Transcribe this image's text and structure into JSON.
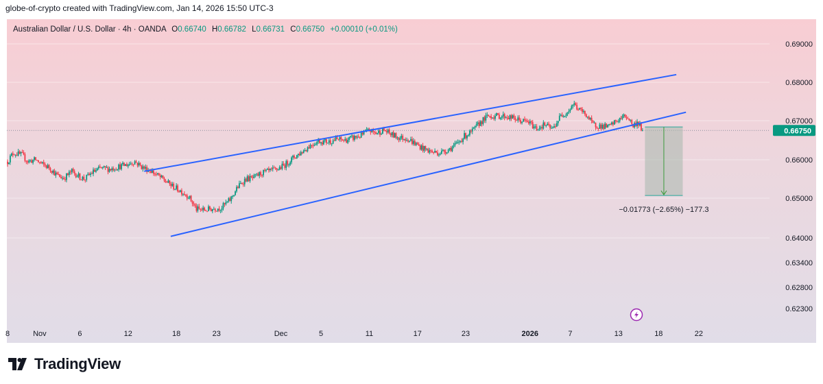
{
  "header": {
    "attribution": "globe-of-crypto created with TradingView.com, Jan 14, 2026 15:50 UTC-3"
  },
  "legend": {
    "symbol": "Australian Dollar / U.S. Dollar · 4h · OANDA",
    "o_label": "O",
    "o_value": "0.66740",
    "h_label": "H",
    "h_value": "0.66782",
    "l_label": "L",
    "l_value": "0.66731",
    "c_label": "C",
    "c_value": "0.66750",
    "change": "+0.00010 (+0.01%)"
  },
  "brand": {
    "name": "TradingView"
  },
  "colors": {
    "up": "#089981",
    "down": "#f23645",
    "channel": "#2962ff",
    "price_tag": "#089981",
    "projection_fill": "#a8b8ad",
    "projection_line": "#26a69a"
  },
  "chart_data": {
    "type": "candlestick",
    "symbol": "AUDUSD",
    "timeframe": "4h",
    "x_ticks": [
      {
        "label": "8",
        "day": 8
      },
      {
        "label": "Nov",
        "day": 12
      },
      {
        "label": "6",
        "day": 17
      },
      {
        "label": "12",
        "day": 23
      },
      {
        "label": "18",
        "day": 29
      },
      {
        "label": "23",
        "day": 34
      },
      {
        "label": "Dec",
        "day": 42
      },
      {
        "label": "5",
        "day": 47
      },
      {
        "label": "11",
        "day": 53
      },
      {
        "label": "17",
        "day": 59
      },
      {
        "label": "23",
        "day": 65
      },
      {
        "label": "2026",
        "day": 73
      },
      {
        "label": "7",
        "day": 78
      },
      {
        "label": "13",
        "day": 84
      },
      {
        "label": "18",
        "day": 89
      },
      {
        "label": "22",
        "day": 94
      }
    ],
    "y_ticks": [
      {
        "label": "0.69000",
        "value": 0.69
      },
      {
        "label": "0.68000",
        "value": 0.68
      },
      {
        "label": "0.67000",
        "value": 0.67
      },
      {
        "label": "0.66000",
        "value": 0.66
      },
      {
        "label": "0.65000",
        "value": 0.65
      },
      {
        "label": "0.64000",
        "value": 0.64
      },
      {
        "label": "0.63400",
        "value": 0.634
      },
      {
        "label": "0.62800",
        "value": 0.628
      },
      {
        "label": "0.62300",
        "value": 0.623
      }
    ],
    "last_price": 0.6675,
    "last_price_label": "0.66750",
    "path_points": [
      [
        8.0,
        0.6595
      ],
      [
        8.7,
        0.6618
      ],
      [
        9.8,
        0.6612
      ],
      [
        10.5,
        0.6596
      ],
      [
        11.5,
        0.66
      ],
      [
        12.3,
        0.6588
      ],
      [
        13.2,
        0.658
      ],
      [
        14.1,
        0.656
      ],
      [
        15.0,
        0.6552
      ],
      [
        16.0,
        0.657
      ],
      [
        17.0,
        0.6555
      ],
      [
        17.6,
        0.655
      ],
      [
        18.6,
        0.6568
      ],
      [
        19.6,
        0.6578
      ],
      [
        20.8,
        0.6576
      ],
      [
        21.8,
        0.6582
      ],
      [
        23.0,
        0.6588
      ],
      [
        23.8,
        0.6596
      ],
      [
        24.8,
        0.658
      ],
      [
        25.8,
        0.6572
      ],
      [
        26.6,
        0.656
      ],
      [
        27.4,
        0.6548
      ],
      [
        28.6,
        0.653
      ],
      [
        29.6,
        0.6518
      ],
      [
        30.5,
        0.6505
      ],
      [
        31.5,
        0.6472
      ],
      [
        32.5,
        0.647
      ],
      [
        33.6,
        0.6474
      ],
      [
        34.6,
        0.6476
      ],
      [
        35.7,
        0.6496
      ],
      [
        36.6,
        0.6528
      ],
      [
        37.6,
        0.655
      ],
      [
        38.6,
        0.6552
      ],
      [
        39.6,
        0.6566
      ],
      [
        40.6,
        0.657
      ],
      [
        41.6,
        0.6576
      ],
      [
        42.6,
        0.6588
      ],
      [
        43.6,
        0.6606
      ],
      [
        44.6,
        0.662
      ],
      [
        45.6,
        0.6636
      ],
      [
        46.6,
        0.6648
      ],
      [
        47.8,
        0.6646
      ],
      [
        49.0,
        0.6652
      ],
      [
        50.0,
        0.665
      ],
      [
        51.0,
        0.6656
      ],
      [
        52.0,
        0.6662
      ],
      [
        53.0,
        0.6676
      ],
      [
        53.8,
        0.6668
      ],
      [
        54.8,
        0.6676
      ],
      [
        55.8,
        0.6664
      ],
      [
        56.8,
        0.6656
      ],
      [
        57.7,
        0.6655
      ],
      [
        58.8,
        0.664
      ],
      [
        59.8,
        0.6628
      ],
      [
        60.8,
        0.662
      ],
      [
        61.8,
        0.6618
      ],
      [
        62.8,
        0.6626
      ],
      [
        63.8,
        0.6638
      ],
      [
        64.8,
        0.666
      ],
      [
        65.8,
        0.6672
      ],
      [
        66.8,
        0.6696
      ],
      [
        67.8,
        0.6712
      ],
      [
        68.8,
        0.6712
      ],
      [
        69.8,
        0.6712
      ],
      [
        70.8,
        0.6707
      ],
      [
        71.8,
        0.67
      ],
      [
        72.8,
        0.6696
      ],
      [
        73.8,
        0.668
      ],
      [
        74.8,
        0.669
      ],
      [
        75.8,
        0.6678
      ],
      [
        76.8,
        0.6712
      ],
      [
        77.8,
        0.6726
      ],
      [
        78.4,
        0.6745
      ],
      [
        79.0,
        0.673
      ],
      [
        80.0,
        0.6716
      ],
      [
        80.8,
        0.669
      ],
      [
        81.8,
        0.6686
      ],
      [
        82.8,
        0.6684
      ],
      [
        83.8,
        0.67
      ],
      [
        84.8,
        0.6712
      ],
      [
        85.3,
        0.6706
      ],
      [
        85.8,
        0.6686
      ],
      [
        86.4,
        0.6697
      ],
      [
        87.0,
        0.6675
      ]
    ],
    "channel": {
      "upper": [
        [
          25.0,
          0.657
        ],
        [
          91.2,
          0.682
        ]
      ],
      "lower": [
        [
          28.3,
          0.6404
        ],
        [
          92.4,
          0.6722
        ]
      ]
    },
    "projection": {
      "from_price": 0.6684,
      "to_price": 0.6507,
      "from_day": 87.3,
      "to_day": 92.0,
      "label": "−0.01773 (−2.65%) −177.3"
    }
  }
}
